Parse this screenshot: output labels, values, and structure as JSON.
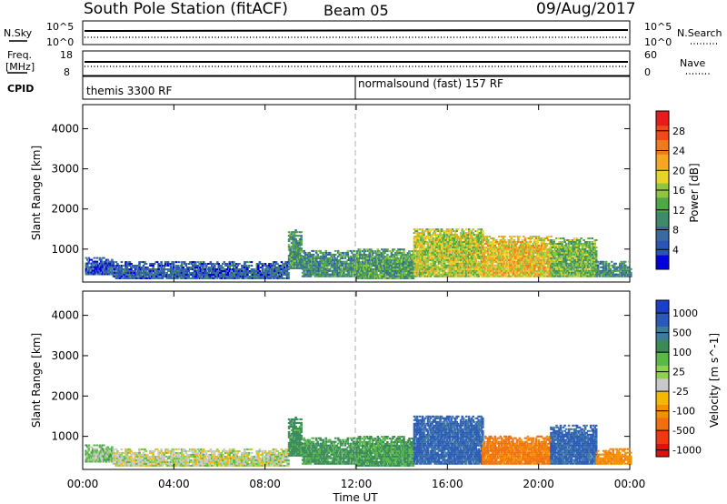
{
  "header": {
    "station": "South Pole Station (fitACF)",
    "beam": "Beam 05",
    "date": "09/Aug/2017"
  },
  "top_panels": {
    "nsky_label": "N.Sky",
    "nsearch_label": "N.Search",
    "noise_top": "10^5",
    "noise_bottom": "10^0",
    "freq_label_1": "Freq.",
    "freq_label_2": "[MHz]",
    "freq_top": "18",
    "freq_bottom": "8",
    "nave_label": "Nave",
    "nave_top": "60",
    "nave_bottom": "0",
    "cpid_label": "CPID",
    "cpid_1": "themis 3300 RF",
    "cpid_2": "normalsound (fast) 157 RF"
  },
  "power_colorbar": {
    "label": "Power [dB]",
    "ticks": [
      "4",
      "8",
      "12",
      "16",
      "20",
      "24",
      "28"
    ],
    "colors": [
      "#0000dd",
      "#2a55b8",
      "#3a6aa0",
      "#3f8a6a",
      "#4ea845",
      "#8ec63f",
      "#e8d32a",
      "#f5a623",
      "#f07a1c",
      "#ee4a1a",
      "#e81a1a"
    ]
  },
  "velocity_colorbar": {
    "label": "Velocity [m s^-1]",
    "ticks": [
      "1000",
      "500",
      "100",
      "25",
      "-25",
      "-100",
      "-500",
      "-1000"
    ],
    "colors": [
      "#1a3fc8",
      "#2a5ab8",
      "#3f7aa0",
      "#3a8a5a",
      "#58b848",
      "#8fd14f",
      "#c8c8c8",
      "#f5b800",
      "#f59000",
      "#f07010",
      "#ee3a10",
      "#e01010"
    ]
  },
  "chart_data": [
    {
      "type": "heatmap",
      "name": "power",
      "ylabel": "Slant Range [km]",
      "ylim": [
        180,
        4600
      ],
      "yticks": [
        1000,
        2000,
        3000,
        4000
      ],
      "xlabel": "Time UT",
      "xlim": [
        0,
        24
      ],
      "xticks": [
        "00:00",
        "04:00",
        "08:00",
        "12:00",
        "16:00",
        "20:00",
        "00:00"
      ],
      "z_label": "Power [dB]",
      "regions": [
        {
          "t0": 0.1,
          "t1": 1.3,
          "r0": 350,
          "r1": 800,
          "level": 5
        },
        {
          "t0": 1.3,
          "t1": 9.0,
          "r0": 250,
          "r1": 700,
          "level": 6
        },
        {
          "t0": 9.0,
          "t1": 9.6,
          "r0": 500,
          "r1": 1450,
          "level": 11
        },
        {
          "t0": 9.6,
          "t1": 12.0,
          "r0": 300,
          "r1": 950,
          "level": 10
        },
        {
          "t0": 12.0,
          "t1": 14.5,
          "r0": 250,
          "r1": 1000,
          "level": 12
        },
        {
          "t0": 14.5,
          "t1": 17.5,
          "r0": 300,
          "r1": 1500,
          "level": 17
        },
        {
          "t0": 17.5,
          "t1": 20.5,
          "r0": 300,
          "r1": 1300,
          "level": 20
        },
        {
          "t0": 20.5,
          "t1": 22.5,
          "r0": 300,
          "r1": 1250,
          "level": 14
        },
        {
          "t0": 22.5,
          "t1": 24.0,
          "r0": 300,
          "r1": 700,
          "level": 10
        }
      ]
    },
    {
      "type": "heatmap",
      "name": "velocity",
      "ylabel": "Slant Range [km]",
      "ylim": [
        180,
        4600
      ],
      "yticks": [
        1000,
        2000,
        3000,
        4000
      ],
      "xlabel": "Time UT",
      "xlim": [
        0,
        24
      ],
      "xticks": [
        "00:00",
        "04:00",
        "08:00",
        "12:00",
        "16:00",
        "20:00",
        "00:00"
      ],
      "z_label": "Velocity [m s^-1]",
      "regions": [
        {
          "t0": 0.1,
          "t1": 1.3,
          "r0": 350,
          "r1": 800,
          "level": 50
        },
        {
          "t0": 1.3,
          "t1": 9.0,
          "r0": 250,
          "r1": 700,
          "level": 10
        },
        {
          "t0": 9.0,
          "t1": 9.6,
          "r0": 500,
          "r1": 1450,
          "level": 150
        },
        {
          "t0": 9.6,
          "t1": 12.0,
          "r0": 300,
          "r1": 950,
          "level": 120
        },
        {
          "t0": 12.0,
          "t1": 14.5,
          "r0": 250,
          "r1": 1000,
          "level": 110
        },
        {
          "t0": 14.5,
          "t1": 17.5,
          "r0": 300,
          "r1": 1500,
          "level": 600
        },
        {
          "t0": 17.5,
          "t1": 20.5,
          "r0": 300,
          "r1": 1000,
          "level": -300
        },
        {
          "t0": 20.5,
          "t1": 22.5,
          "r0": 300,
          "r1": 1250,
          "level": 600
        },
        {
          "t0": 22.5,
          "t1": 24.0,
          "r0": 300,
          "r1": 700,
          "level": -200
        }
      ]
    }
  ]
}
